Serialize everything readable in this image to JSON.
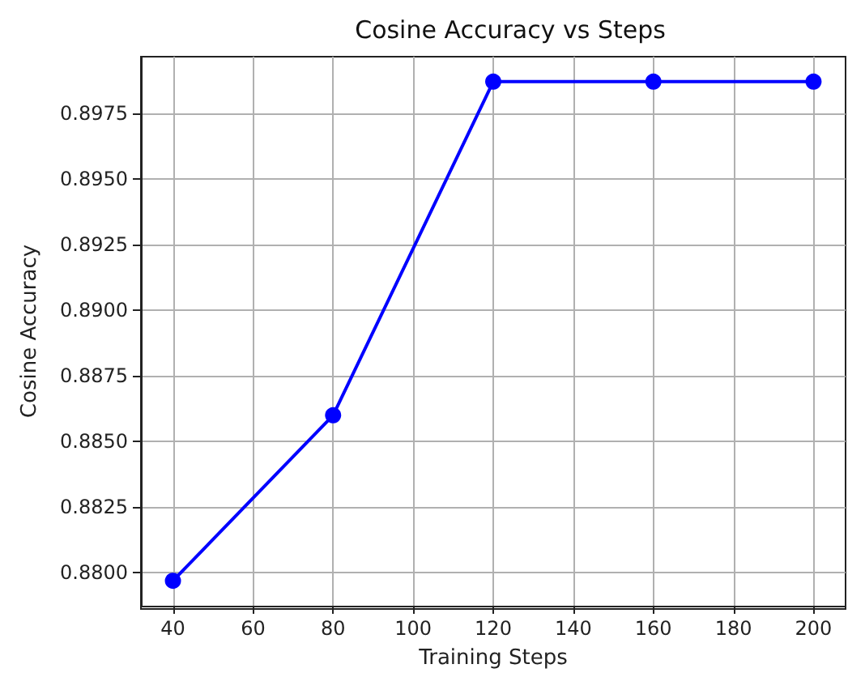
{
  "chart_data": {
    "type": "line",
    "title": "Cosine Accuracy vs Steps",
    "xlabel": "Training Steps",
    "ylabel": "Cosine Accuracy",
    "x": [
      40,
      80,
      120,
      160,
      200
    ],
    "series": [
      {
        "color": "#0000ff",
        "values": [
          0.8797,
          0.886,
          0.8987,
          0.8987,
          0.8987
        ]
      }
    ],
    "xlim": [
      32,
      208
    ],
    "xticks": [
      40,
      60,
      80,
      100,
      120,
      140,
      160,
      180,
      200
    ],
    "ylim": [
      0.87875,
      0.89965
    ],
    "yticks": [
      {
        "value": 0.88,
        "label": "0.8800"
      },
      {
        "value": 0.8825,
        "label": "0.8825"
      },
      {
        "value": 0.885,
        "label": "0.8850"
      },
      {
        "value": 0.8875,
        "label": "0.8875"
      },
      {
        "value": 0.89,
        "label": "0.8900"
      },
      {
        "value": 0.8925,
        "label": "0.8925"
      },
      {
        "value": 0.895,
        "label": "0.8950"
      },
      {
        "value": 0.8975,
        "label": "0.8975"
      }
    ],
    "grid": true,
    "marker": "circle",
    "line_style": "solid"
  }
}
